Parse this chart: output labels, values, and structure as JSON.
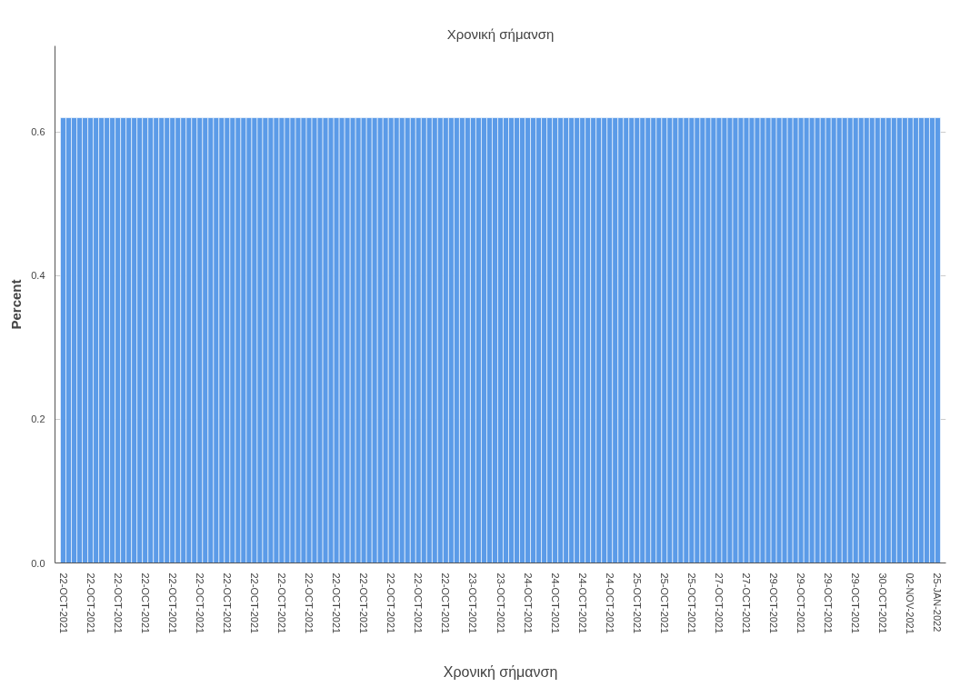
{
  "chart_data": {
    "type": "bar",
    "title": "Χρονική σήμανση",
    "xlabel": "Χρονική σήμανση",
    "ylabel": "Percent",
    "categories": [
      "22-OCT-2021",
      null,
      null,
      null,
      null,
      "22-OCT-2021",
      null,
      null,
      null,
      null,
      "22-OCT-2021",
      null,
      null,
      null,
      null,
      "22-OCT-2021",
      null,
      null,
      null,
      null,
      "22-OCT-2021",
      null,
      null,
      null,
      null,
      "22-OCT-2021",
      null,
      null,
      null,
      null,
      "22-OCT-2021",
      null,
      null,
      null,
      null,
      "22-OCT-2021",
      null,
      null,
      null,
      null,
      "22-OCT-2021",
      null,
      null,
      null,
      null,
      "22-OCT-2021",
      null,
      null,
      null,
      null,
      "22-OCT-2021",
      null,
      null,
      null,
      null,
      "22-OCT-2021",
      null,
      null,
      null,
      null,
      "22-OCT-2021",
      null,
      null,
      null,
      null,
      "22-OCT-2021",
      null,
      null,
      null,
      null,
      "22-OCT-2021",
      null,
      null,
      null,
      null,
      "23-OCT-2021",
      null,
      null,
      null,
      null,
      "23-OCT-2021",
      null,
      null,
      null,
      null,
      "24-OCT-2021",
      null,
      null,
      null,
      null,
      "24-OCT-2021",
      null,
      null,
      null,
      null,
      "24-OCT-2021",
      null,
      null,
      null,
      null,
      "24-OCT-2021",
      null,
      null,
      null,
      null,
      "25-OCT-2021",
      null,
      null,
      null,
      null,
      "25-OCT-2021",
      null,
      null,
      null,
      null,
      "25-OCT-2021",
      null,
      null,
      null,
      null,
      "27-OCT-2021",
      null,
      null,
      null,
      null,
      "27-OCT-2021",
      null,
      null,
      null,
      null,
      "29-OCT-2021",
      null,
      null,
      null,
      null,
      "29-OCT-2021",
      null,
      null,
      null,
      null,
      "29-OCT-2021",
      null,
      null,
      null,
      null,
      "29-OCT-2021",
      null,
      null,
      null,
      null,
      "30-OCT-2021",
      null,
      null,
      null,
      null,
      "02-NOV-2021",
      null,
      null,
      null,
      null,
      "25-JAN-2022"
    ],
    "values": [
      0.62,
      0.62,
      0.62,
      0.62,
      0.62,
      0.62,
      0.62,
      0.62,
      0.62,
      0.62,
      0.62,
      0.62,
      0.62,
      0.62,
      0.62,
      0.62,
      0.62,
      0.62,
      0.62,
      0.62,
      0.62,
      0.62,
      0.62,
      0.62,
      0.62,
      0.62,
      0.62,
      0.62,
      0.62,
      0.62,
      0.62,
      0.62,
      0.62,
      0.62,
      0.62,
      0.62,
      0.62,
      0.62,
      0.62,
      0.62,
      0.62,
      0.62,
      0.62,
      0.62,
      0.62,
      0.62,
      0.62,
      0.62,
      0.62,
      0.62,
      0.62,
      0.62,
      0.62,
      0.62,
      0.62,
      0.62,
      0.62,
      0.62,
      0.62,
      0.62,
      0.62,
      0.62,
      0.62,
      0.62,
      0.62,
      0.62,
      0.62,
      0.62,
      0.62,
      0.62,
      0.62,
      0.62,
      0.62,
      0.62,
      0.62,
      0.62,
      0.62,
      0.62,
      0.62,
      0.62,
      0.62,
      0.62,
      0.62,
      0.62,
      0.62,
      0.62,
      0.62,
      0.62,
      0.62,
      0.62,
      0.62,
      0.62,
      0.62,
      0.62,
      0.62,
      0.62,
      0.62,
      0.62,
      0.62,
      0.62,
      0.62,
      0.62,
      0.62,
      0.62,
      0.62,
      0.62,
      0.62,
      0.62,
      0.62,
      0.62,
      0.62,
      0.62,
      0.62,
      0.62,
      0.62,
      0.62,
      0.62,
      0.62,
      0.62,
      0.62,
      0.62,
      0.62,
      0.62,
      0.62,
      0.62,
      0.62,
      0.62,
      0.62,
      0.62,
      0.62,
      0.62,
      0.62,
      0.62,
      0.62,
      0.62,
      0.62,
      0.62,
      0.62,
      0.62,
      0.62,
      0.62,
      0.62,
      0.62,
      0.62,
      0.62,
      0.62,
      0.62,
      0.62,
      0.62,
      0.62,
      0.62,
      0.62,
      0.62,
      0.62,
      0.62,
      0.62,
      0.62,
      0.62,
      0.62,
      0.62,
      0.62
    ],
    "color": "#5b9be8",
    "ylim": [
      0,
      0.72
    ],
    "yticks": [
      {
        "value": 0,
        "label": "0.0"
      },
      {
        "value": 0.2,
        "label": "0.2"
      },
      {
        "value": 0.4,
        "label": "0.4"
      },
      {
        "value": 0.6,
        "label": "0.6"
      }
    ],
    "grid": "y"
  }
}
